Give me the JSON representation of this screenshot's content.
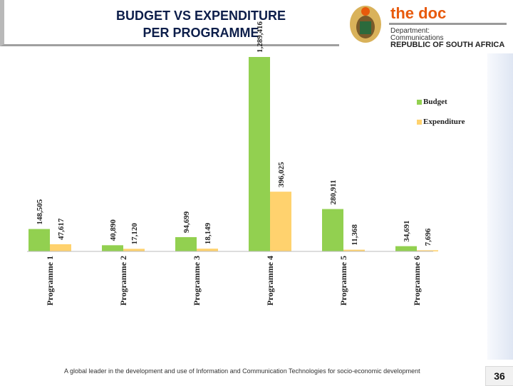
{
  "header": {
    "title_line1": "BUDGET VS EXPENDITURE",
    "title_line2": "PER PROGRAMME"
  },
  "logo": {
    "brand": "the doc",
    "line1": "Department:",
    "line2": "Communications",
    "line3": "REPUBLIC OF SOUTH AFRICA"
  },
  "footer": {
    "tagline": "A global leader in the development and use of Information and Communication Technologies for socio-economic development",
    "page_number": "36"
  },
  "chart_data": {
    "type": "bar",
    "title": "BUDGET VS EXPENDITURE PER PROGRAMME",
    "categories": [
      "Programme 1",
      "Programme 2",
      "Programme 3",
      "Programme 4",
      "Programme 5",
      "Programme 6"
    ],
    "series": [
      {
        "name": "Budget",
        "color": "#92d050",
        "values": [
          148505,
          40890,
          94699,
          1289416,
          280911,
          34691
        ],
        "labels": [
          "148,505",
          "40,890",
          "94,699",
          "1,289,416",
          "280,911",
          "34,691"
        ]
      },
      {
        "name": "Expenditure",
        "color": "#ffd26e",
        "values": [
          47617,
          17120,
          18149,
          396025,
          11368,
          7696
        ],
        "labels": [
          "47,617",
          "17,120",
          "18,149",
          "396,025",
          "11,368",
          "7,696"
        ]
      }
    ],
    "ylim": [
      0,
      1289416
    ],
    "legend": "right"
  }
}
